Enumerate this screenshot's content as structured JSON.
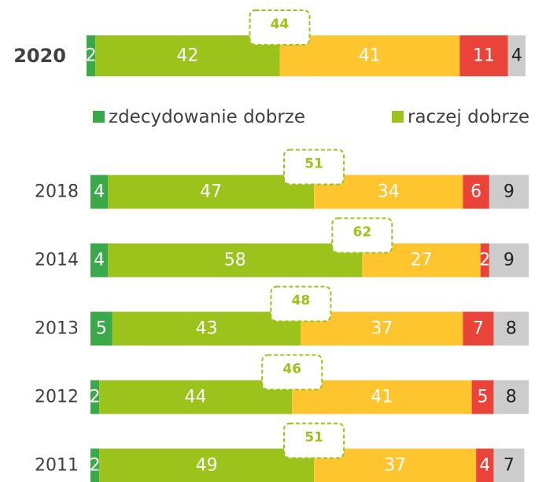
{
  "chart_data": {
    "type": "bar",
    "orientation": "horizontal",
    "stacked": true,
    "categories": [
      "2020",
      "2018",
      "2014",
      "2013",
      "2012",
      "2011"
    ],
    "series": [
      {
        "name": "zdecydowanie dobrze",
        "color": "#3aaa49",
        "values": [
          2,
          4,
          4,
          5,
          2,
          2
        ]
      },
      {
        "name": "raczej dobrze",
        "color": "#9bc31c",
        "values": [
          42,
          47,
          58,
          43,
          44,
          49
        ]
      },
      {
        "color": "#fec52e",
        "values": [
          41,
          34,
          27,
          37,
          41,
          37
        ]
      },
      {
        "color": "#e9433a",
        "values": [
          11,
          6,
          2,
          7,
          5,
          4
        ]
      },
      {
        "color": "#cccccc",
        "values": [
          4,
          9,
          9,
          8,
          8,
          7
        ]
      }
    ],
    "callouts": [
      44,
      51,
      62,
      48,
      46,
      51
    ],
    "xlim": [
      0,
      100
    ]
  }
}
